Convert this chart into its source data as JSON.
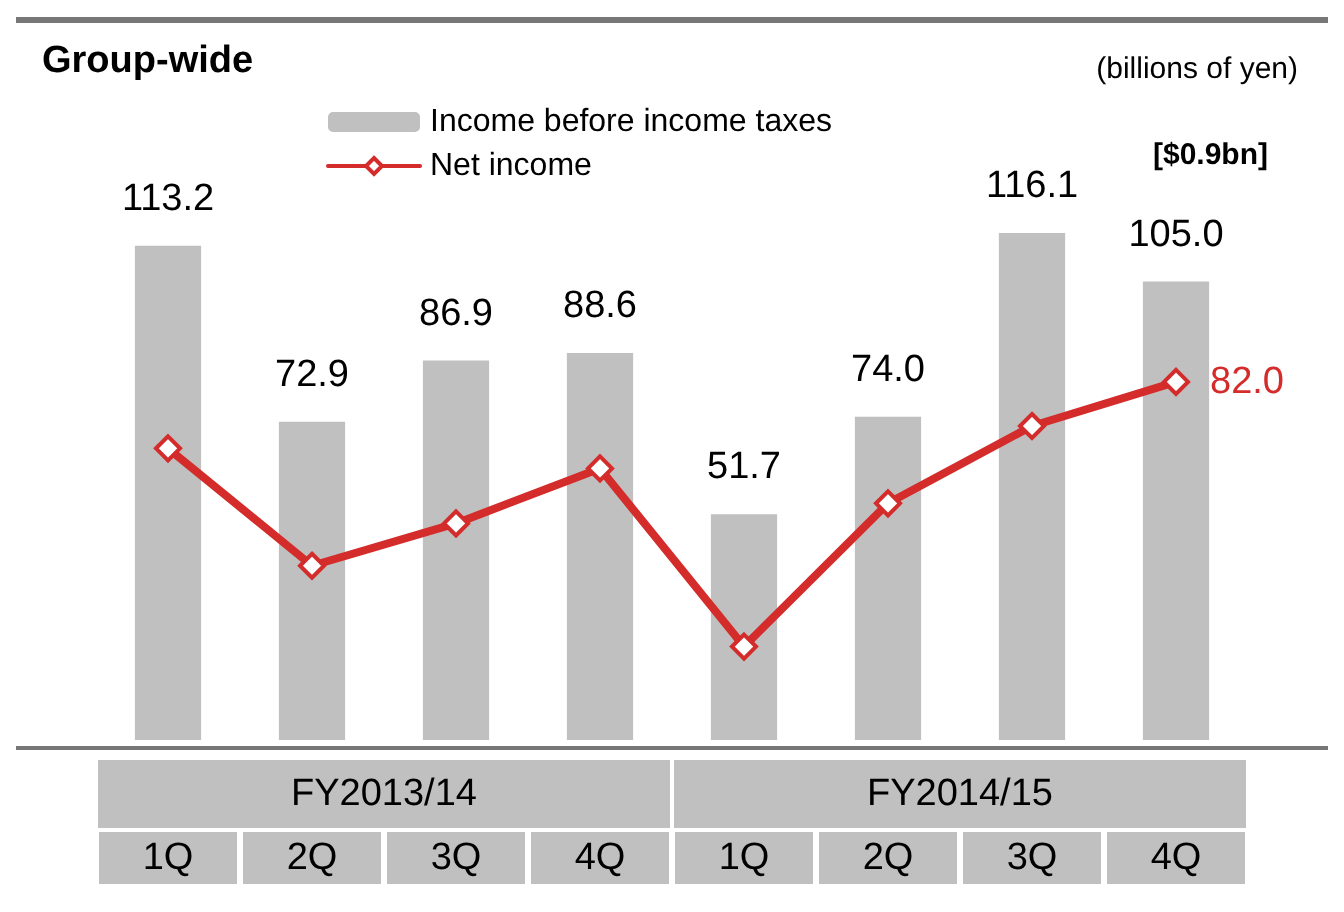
{
  "chart_data": {
    "type": "bar",
    "title": "Group-wide",
    "subtitle": "(billions of yen)",
    "annotations": [
      "[$0.9bn]",
      "FY2013/14",
      "FY2014/15"
    ],
    "categories": [
      "1Q",
      "2Q",
      "3Q",
      "4Q",
      "1Q",
      "2Q",
      "3Q",
      "4Q"
    ],
    "series": [
      {
        "name": "Income before income taxes",
        "color": "#c0c0c0",
        "values": [
          113.2,
          72.9,
          86.9,
          88.6,
          51.7,
          74.0,
          116.1,
          105.0
        ],
        "value_labels": [
          "113.2",
          "72.9",
          "86.9",
          "88.6",
          "51.7",
          "74.0",
          "116.1",
          "105.0"
        ]
      },
      {
        "name": "Net income",
        "type": "line",
        "color": "#d42b2b",
        "marker": "diamond",
        "values": [
          66.8,
          39.9,
          49.6,
          62.2,
          21.4,
          54.2,
          71.9,
          82.0
        ],
        "value_labels": [
          null,
          null,
          null,
          null,
          null,
          null,
          null,
          "82.0"
        ]
      }
    ],
    "legend": "top",
    "grid": false
  }
}
